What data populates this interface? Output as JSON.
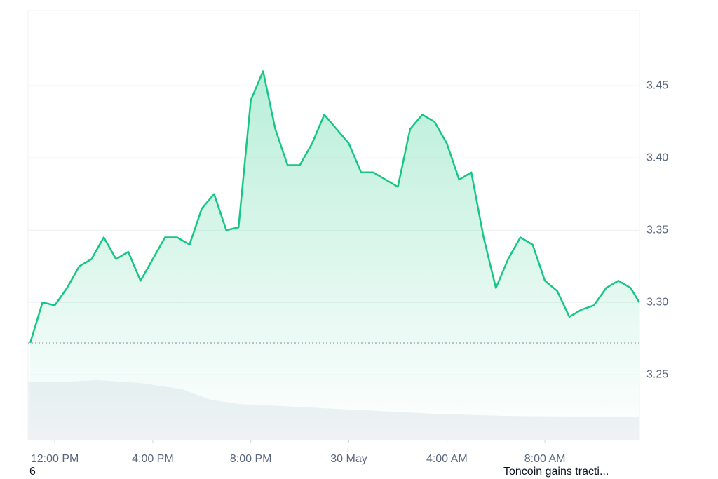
{
  "chart_data": {
    "type": "line",
    "x": [
      -1,
      -0.5,
      0,
      0.5,
      1,
      1.5,
      2,
      2.5,
      3,
      3.5,
      4,
      4.5,
      5,
      5.5,
      6,
      6.5,
      7,
      7.5,
      8,
      8.5,
      9,
      9.5,
      10,
      10.5,
      11,
      11.5,
      12,
      12.5,
      13,
      13.5,
      14,
      14.5,
      15,
      15.5,
      16,
      16.5,
      17,
      17.5,
      18,
      18.5,
      19,
      19.5,
      20,
      20.5,
      21,
      21.5,
      22,
      22.5,
      23,
      23.5,
      23.85
    ],
    "values": [
      3.272,
      3.3,
      3.298,
      3.31,
      3.325,
      3.33,
      3.345,
      3.33,
      3.335,
      3.315,
      3.33,
      3.345,
      3.345,
      3.34,
      3.365,
      3.375,
      3.35,
      3.352,
      3.44,
      3.46,
      3.42,
      3.395,
      3.395,
      3.41,
      3.43,
      3.42,
      3.41,
      3.39,
      3.39,
      3.385,
      3.38,
      3.42,
      3.43,
      3.425,
      3.41,
      3.385,
      3.39,
      3.345,
      3.31,
      3.33,
      3.345,
      3.34,
      3.315,
      3.308,
      3.29,
      3.295,
      3.298,
      3.31,
      3.315,
      3.31,
      3.3
    ],
    "color": "#16c784",
    "baseline": 3.272,
    "xlim": [
      -1.09,
      23.86
    ],
    "xticks": [
      {
        "value": 0,
        "label": "12:00 PM"
      },
      {
        "value": 4,
        "label": "4:00 PM"
      },
      {
        "value": 8,
        "label": "8:00 PM"
      },
      {
        "value": 12,
        "label": "30 May"
      },
      {
        "value": 16,
        "label": "4:00 AM"
      },
      {
        "value": 20,
        "label": "8:00 AM"
      }
    ],
    "ylim": [
      3.205,
      3.502
    ],
    "yticks": [
      {
        "value": 3.25,
        "label": "3.25"
      },
      {
        "value": 3.3,
        "label": "3.30"
      },
      {
        "value": 3.35,
        "label": "3.35"
      },
      {
        "value": 3.4,
        "label": "3.40"
      },
      {
        "value": 3.45,
        "label": "3.45"
      }
    ],
    "grid": true
  },
  "footer": {
    "left": "6",
    "headline": "Toncoin gains tracti..."
  }
}
